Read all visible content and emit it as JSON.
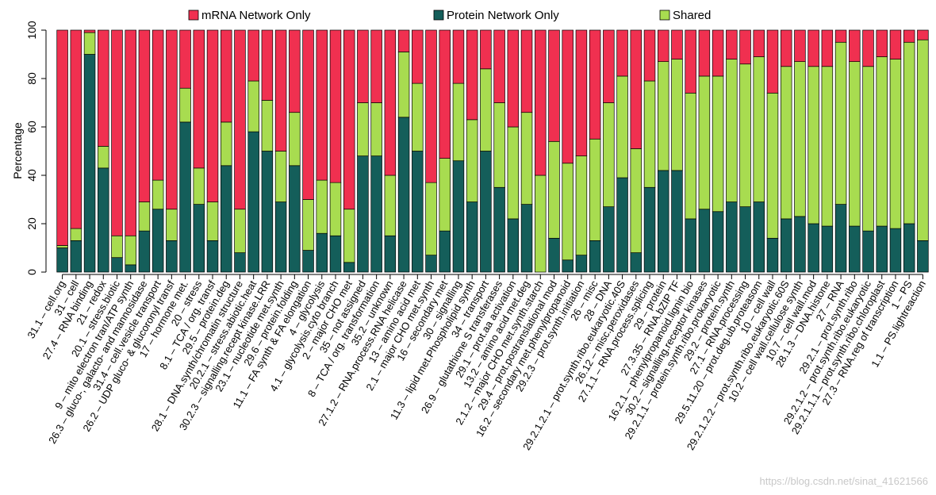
{
  "chart_data": {
    "type": "bar",
    "stacked": true,
    "ylabel": "Percentage",
    "ylim": [
      0,
      100
    ],
    "yticks": [
      0,
      20,
      40,
      60,
      80,
      100
    ],
    "legend_position": "top",
    "colors": {
      "mrna": "#F03050",
      "protein": "#145E5A",
      "shared": "#A8DC50"
    },
    "series": [
      {
        "key": "mrna",
        "name": "mRNA Network Only"
      },
      {
        "key": "protein",
        "name": "Protein Network Only"
      },
      {
        "key": "shared",
        "name": "Shared"
      }
    ],
    "categories": [
      "31.1 – cell.org",
      "31 – cell",
      "27.4 – RNA binding",
      "21 – redox",
      "20.1 – stress.biotic",
      "9 – mito electron tran/ATP synth",
      "26.3 – gluco-, galacto- and mannosidase",
      "31.4 – cell.vesicle transport",
      "26.2 – UDP gluco- & glucoronyl transf",
      "17 – hormone met.",
      "20 – stress",
      "8.1 – TCA / org. transf",
      "29.5 – protein.deg",
      "28.1 – DNA.synth/chromatin structure",
      "20.2.1 – stress.abiotic.heat",
      "30.2.3 – signalling.recept kinase.LRR",
      "23.1 – nucleotide met.synth",
      "29.6 – protein.folding",
      "11.1 – FA synth & FA elongation",
      "4 – glycolysis",
      "4.1 – glycolysis.cyto branch",
      "2 – major CHO met",
      "35 – not assigned",
      "8 – TCA / org. transformation",
      "35.2 – unknown",
      "27.1.2 – RNA.process.RNA helicase",
      "13 – amino acid met",
      "2.1 – major CHO met.synth",
      "16 – secondary met",
      "30 – signalling",
      "11.3 – lipid met.Phospholipid synth",
      "34 – transport",
      "26.9 – glutathione S transferases",
      "29.1 – prot.aa activation",
      "13.2 – amino acid met.deg",
      "2.1.2 – major CHO met.synth.starch",
      "29.4 – prot.postranslational mod",
      "16.2 – secondary met.phenylpropanoid",
      "29.2.3 – prot.synth.initiation",
      "26 – misc",
      "28 – DNA",
      "29.2.1.2.1 – prot.synth.ribo.eukaryotic.40S",
      "26.12 – misc.peroxidases",
      "27.1.1 – RNA.process.splicing",
      "29 – protein",
      "27.3.35 – RNA.bZIP TF",
      "16.2.1 – phenylpropanoid.lignin bio",
      "30.2 – signalling.receptor kinases",
      "29.2.1.1 – protein.synth.ribo.prokaryotic",
      "29.2 – protein.synth",
      "27.1 – RNA.processing",
      "29.5.11.20 – prot.deg.ub.proteasom",
      "10 – cell wall",
      "29.2.1.2.2 – prot.synth.ribo.eukaryotic.60S",
      "10.2 – cell wall.cellulose synth",
      "10.7 – cell wall.mod",
      "28.1.3 – DNA.histone",
      "27 – RNA",
      "29.2.1 – prot.synth.ribo",
      "29.2.1.2 – prot.synth.ribo.eukaryotic",
      "29.2.1.1.1 – prot.synth.ribo.chloroplast",
      "27.3 – RNA.reg of transcription",
      "1 – PS",
      "1.1 – PS.lightreaction"
    ],
    "values": {
      "protein": [
        10,
        13,
        90,
        43,
        6,
        3,
        17,
        26,
        13,
        62,
        28,
        13,
        44,
        8,
        58,
        50,
        29,
        44,
        9,
        16,
        15,
        4,
        48,
        48,
        15,
        64,
        50,
        7,
        17,
        46,
        29,
        50,
        35,
        22,
        28,
        0,
        14,
        5,
        7,
        13,
        27,
        39,
        8,
        35,
        42,
        42,
        22,
        26,
        25,
        29,
        27,
        29,
        14,
        22,
        23,
        20,
        19,
        28,
        19,
        17,
        19,
        18,
        20,
        13
      ],
      "shared": [
        1,
        5,
        9,
        9,
        9,
        12,
        12,
        12,
        13,
        14,
        15,
        16,
        18,
        18,
        21,
        21,
        21,
        22,
        21,
        22,
        22,
        22,
        22,
        22,
        25,
        27,
        28,
        30,
        30,
        32,
        34,
        34,
        35,
        38,
        38,
        40,
        40,
        40,
        41,
        42,
        43,
        42,
        43,
        44,
        45,
        46,
        52,
        55,
        56,
        59,
        59,
        60,
        60,
        63,
        64,
        65,
        66,
        67,
        68,
        68,
        70,
        70,
        75,
        83
      ]
    }
  },
  "watermark": "https://blog.csdn.net/sinat_41621566"
}
